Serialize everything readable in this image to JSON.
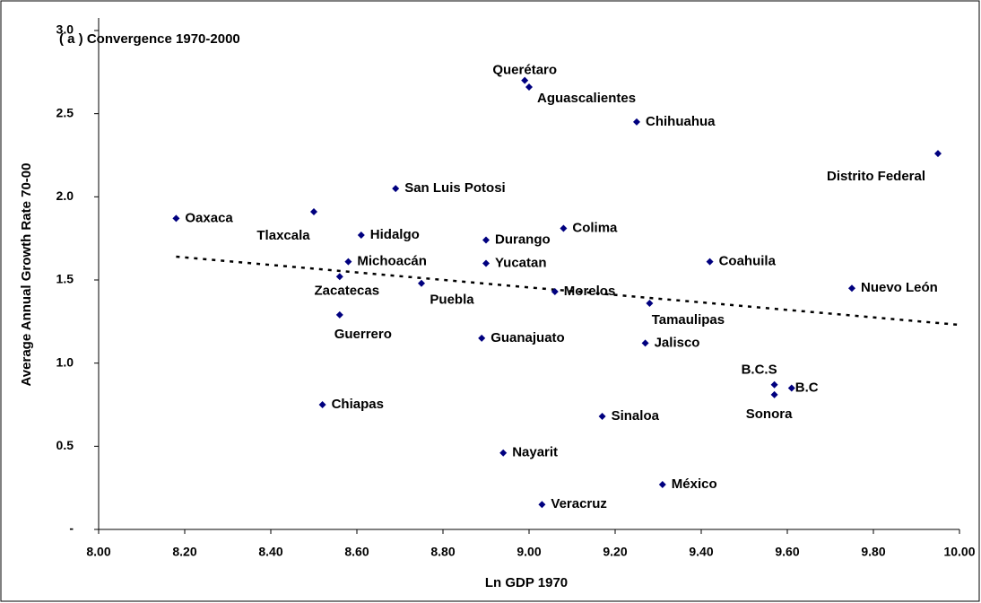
{
  "chart_data": {
    "type": "scatter",
    "title": "( a ) Convergence 1970-2000",
    "x_label": "Ln GDP 1970",
    "y_label": "Average Annual Growth Rate 70-00",
    "color": "#00007f",
    "labels": [
      "Querétaro",
      "Aguascalientes",
      "Chihuahua",
      "Distrito Federal",
      "San Luis Potosi",
      "Oaxaca",
      "Tlaxcala",
      "Hidalgo",
      "Colima",
      "Durango",
      "Michoacán",
      "Yucatan",
      "Coahuila",
      "Zacatecas",
      "Puebla",
      "Morelos",
      "Nuevo León",
      "Tamaulipas",
      "Guerrero",
      "Guanajuato",
      "Jalisco",
      "B.C.S",
      "B.C",
      "Sonora",
      "Chiapas",
      "Sinaloa",
      "Nayarit",
      "México",
      "Veracruz"
    ],
    "x": [
      8.99,
      9.0,
      9.25,
      9.95,
      8.69,
      8.18,
      8.5,
      8.61,
      9.08,
      8.9,
      8.58,
      8.9,
      9.42,
      8.56,
      8.75,
      9.06,
      9.75,
      9.28,
      8.56,
      8.89,
      9.27,
      9.57,
      9.61,
      9.57,
      8.52,
      9.17,
      8.94,
      9.31,
      9.03
    ],
    "y": [
      2.7,
      2.66,
      2.45,
      2.26,
      2.05,
      1.87,
      1.91,
      1.77,
      1.81,
      1.74,
      1.61,
      1.6,
      1.61,
      1.52,
      1.48,
      1.43,
      1.45,
      1.36,
      1.29,
      1.15,
      1.12,
      0.87,
      0.85,
      0.81,
      0.75,
      0.68,
      0.46,
      0.27,
      0.15
    ],
    "trendline": {
      "x": [
        8.18,
        10.0
      ],
      "y": [
        1.64,
        1.23
      ],
      "style": "dotted"
    },
    "xlim": [
      8,
      10
    ],
    "xticks": [
      {
        "value": 8,
        "label": "8.00"
      },
      {
        "value": 8.2,
        "label": "8.20"
      },
      {
        "value": 8.4,
        "label": "8.40"
      },
      {
        "value": 8.6,
        "label": "8.60"
      },
      {
        "value": 8.8,
        "label": "8.80"
      },
      {
        "value": 9,
        "label": "9.00"
      },
      {
        "value": 9.2,
        "label": "9.20"
      },
      {
        "value": 9.4,
        "label": "9.40"
      },
      {
        "value": 9.6,
        "label": "9.60"
      },
      {
        "value": 9.8,
        "label": "9.80"
      },
      {
        "value": 10,
        "label": "10.00"
      }
    ],
    "ylim": [
      0,
      3
    ],
    "yticks": [
      {
        "value": 0,
        "label": "-"
      },
      0.5,
      {
        "value": 1,
        "label": "1.0"
      },
      1.5,
      {
        "value": 2,
        "label": "2.0"
      },
      2.5,
      {
        "value": 3,
        "label": "3.0"
      }
    ],
    "grid": false
  }
}
